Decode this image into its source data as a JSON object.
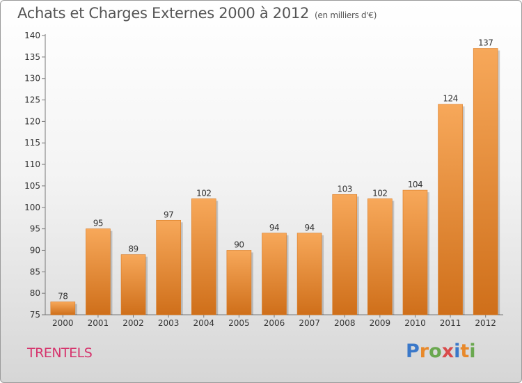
{
  "title": "Achats et Charges Externes 2000 à 2012",
  "subtitle": "(en milliers d'€)",
  "commune": "TRENTELS",
  "brand": {
    "letters": [
      "P",
      "r",
      "o",
      "x",
      "i",
      "t",
      "i"
    ],
    "colors": [
      "#3a78c9",
      "#e8892b",
      "#6aa84f",
      "#d94b4b",
      "#3a78c9",
      "#e8892b",
      "#6aa84f"
    ]
  },
  "colors": {
    "bar": "#ef8a2e",
    "bar_light": "#f7a85a",
    "bar_dark": "#cf6f1a",
    "text": "#555555"
  },
  "chart_data": {
    "type": "bar",
    "categories": [
      "2000",
      "2001",
      "2002",
      "2003",
      "2004",
      "2005",
      "2006",
      "2007",
      "2008",
      "2009",
      "2010",
      "2011",
      "2012"
    ],
    "values": [
      78,
      95,
      89,
      97,
      102,
      90,
      94,
      94,
      103,
      102,
      104,
      124,
      137
    ],
    "ylim": [
      75,
      140
    ],
    "yticks": [
      75,
      80,
      85,
      90,
      95,
      100,
      105,
      110,
      115,
      120,
      125,
      130,
      135,
      140
    ],
    "xlabel": "",
    "ylabel": "",
    "grid": false,
    "data_labels": true
  }
}
